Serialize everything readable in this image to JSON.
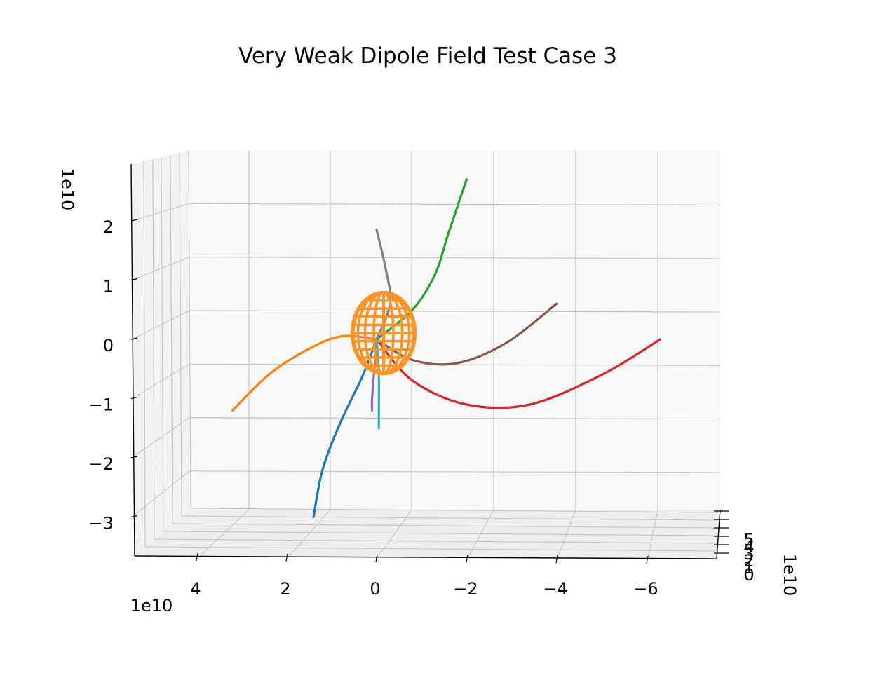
{
  "chart_data": {
    "type": "3d-line",
    "title": "Very Weak Dipole Field Test Case 3",
    "xlabel": "",
    "ylabel": "",
    "zlabel": "",
    "x_offset_text": "1e10",
    "y_offset_text": "1e10",
    "z_offset_text": "1e10",
    "x_ticks": [
      "4",
      "2",
      "0",
      "−2",
      "−4",
      "−6"
    ],
    "y_ticks": [
      "5",
      "4",
      "3",
      "2",
      "1",
      "0"
    ],
    "z_ticks": [
      "2",
      "1",
      "0",
      "−1",
      "−2",
      "−3"
    ],
    "grid": true,
    "colors": {
      "pane": "#f8f8f8",
      "grid": "#c8c8c8",
      "axis": "#000000",
      "sphere": "#ff9328"
    },
    "sphere": {
      "center": [
        0,
        0,
        0
      ],
      "radius": 0.8,
      "color": "#ff9328"
    },
    "series": [
      {
        "color": "#1f77b4",
        "points": [
          [
            0,
            0,
            0
          ],
          [
            0.3,
            0,
            -0.6
          ],
          [
            0.8,
            0,
            -1.4
          ],
          [
            1.2,
            0,
            -2.2
          ],
          [
            1.4,
            0,
            -3.0
          ]
        ]
      },
      {
        "color": "#ff7f0e",
        "points": [
          [
            0,
            0,
            0
          ],
          [
            0.8,
            0,
            0.05
          ],
          [
            1.6,
            0,
            -0.2
          ],
          [
            2.4,
            0,
            -0.6
          ],
          [
            3.2,
            0,
            -1.2
          ]
        ]
      },
      {
        "color": "#2ca02c",
        "points": [
          [
            0,
            0,
            0
          ],
          [
            -0.8,
            0,
            0.5
          ],
          [
            -1.3,
            0,
            1.1
          ],
          [
            -1.6,
            0,
            1.8
          ],
          [
            -2.0,
            0,
            2.7
          ]
        ]
      },
      {
        "color": "#d62728",
        "points": [
          [
            0,
            0,
            0
          ],
          [
            -0.8,
            0,
            -0.7
          ],
          [
            -2.0,
            0,
            -1.1
          ],
          [
            -3.4,
            0,
            -1.1
          ],
          [
            -5.0,
            0,
            -0.6
          ],
          [
            -6.3,
            0,
            0.0
          ]
        ]
      },
      {
        "color": "#9467bd",
        "points": [
          [
            0,
            0,
            0
          ],
          [
            0.05,
            0,
            -0.5
          ],
          [
            0.1,
            0,
            -1.0
          ],
          [
            0.1,
            0,
            -1.2
          ]
        ]
      },
      {
        "color": "#8c564b",
        "points": [
          [
            0,
            0,
            0
          ],
          [
            -0.8,
            0,
            -0.35
          ],
          [
            -1.8,
            0,
            -0.4
          ],
          [
            -2.9,
            0,
            -0.05
          ],
          [
            -4.0,
            0,
            0.6
          ]
        ]
      },
      {
        "color": "#7f7f7f",
        "points": [
          [
            0,
            0,
            0
          ],
          [
            -0.3,
            0,
            0.6
          ],
          [
            -0.2,
            0,
            1.2
          ],
          [
            0,
            0,
            1.85
          ]
        ]
      },
      {
        "color": "#17becf",
        "points": [
          [
            0,
            0,
            0
          ],
          [
            -0.05,
            0,
            -0.6
          ],
          [
            -0.05,
            0,
            -1.3
          ],
          [
            -0.05,
            0,
            -1.5
          ]
        ]
      }
    ]
  }
}
